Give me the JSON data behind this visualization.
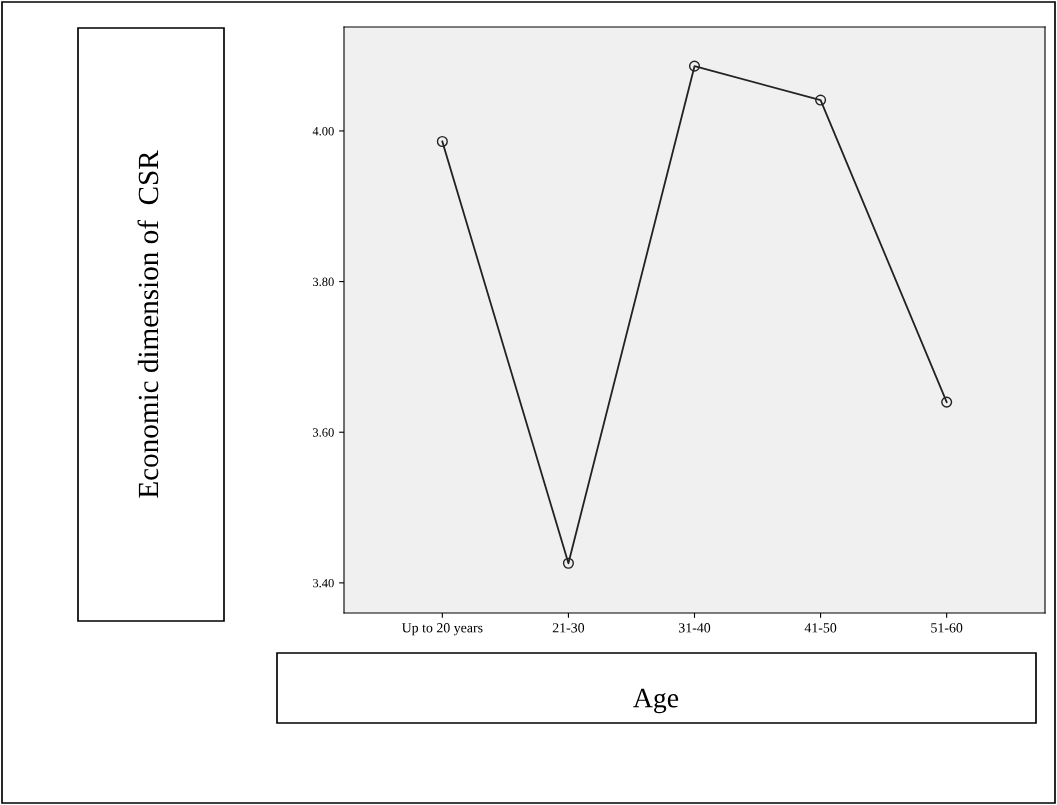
{
  "chart_data": {
    "type": "line",
    "xlabel": "Age",
    "annotations": [
      "Economic dimension of  CSR"
    ],
    "categories": [
      "Up to 20 years",
      "21-30",
      "31-40",
      "41-50",
      "51-60"
    ],
    "series": [
      {
        "color": "#222222",
        "values": [
          3.986,
          3.426,
          4.086,
          4.041,
          3.64
        ]
      }
    ],
    "ylim": [
      3.36,
      4.138
    ],
    "yticks": [
      {
        "value": 3.4,
        "label": "3.40"
      },
      {
        "value": 3.6,
        "label": "3.60"
      },
      {
        "value": 3.8,
        "label": "3.80"
      },
      {
        "value": 4.0,
        "label": "4.00"
      }
    ],
    "marker": "circle",
    "line_style": "solid",
    "grid": false,
    "legend": false
  }
}
